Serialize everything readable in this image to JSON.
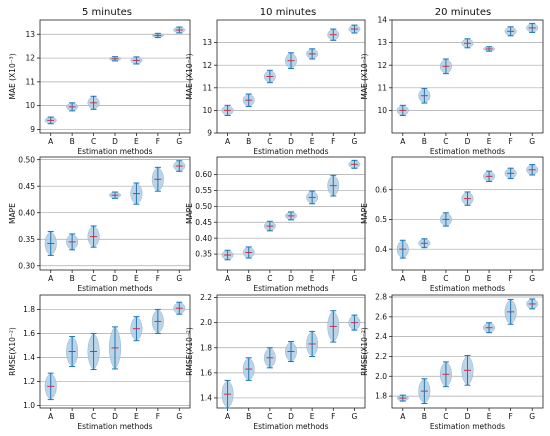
{
  "column_titles": [
    "5 minutes",
    "10 minutes",
    "20 minutes"
  ],
  "chart_data": [
    {
      "type": "violin",
      "row": 0,
      "col": 0,
      "ylabel": "MAE (X10⁻³)",
      "xlabel": "Estimation methods",
      "categories": [
        "A",
        "B",
        "C",
        "D",
        "E",
        "F",
        "G"
      ],
      "ylim": [
        8.85,
        13.6
      ],
      "yticks": [
        9,
        10,
        11,
        12,
        13
      ],
      "values": [
        9.38,
        9.95,
        10.12,
        11.97,
        11.9,
        12.95,
        13.18
      ],
      "spread": [
        0.28,
        0.34,
        0.55,
        0.18,
        0.3,
        0.18,
        0.25
      ],
      "fill": "#afcde3",
      "median_color": "#c8324b"
    },
    {
      "type": "violin",
      "row": 0,
      "col": 1,
      "ylabel": "MAE (X10⁻³)",
      "xlabel": "Estimation methods",
      "categories": [
        "A",
        "B",
        "C",
        "D",
        "E",
        "F",
        "G"
      ],
      "ylim": [
        9.0,
        14.0
      ],
      "yticks": [
        9,
        10,
        11,
        12,
        13
      ],
      "values": [
        10.0,
        10.45,
        11.5,
        12.2,
        12.5,
        13.35,
        13.6
      ],
      "spread": [
        0.45,
        0.55,
        0.55,
        0.7,
        0.45,
        0.5,
        0.35
      ],
      "fill": "#afcde3",
      "median_color": "#c8324b"
    },
    {
      "type": "violin",
      "row": 0,
      "col": 2,
      "ylabel": "MAE (X10⁻³)",
      "xlabel": "Estimation methods",
      "categories": [
        "A",
        "B",
        "C",
        "D",
        "E",
        "F",
        "G"
      ],
      "ylim": [
        9.0,
        14.0
      ],
      "yticks": [
        10,
        11,
        12,
        13,
        14
      ],
      "values": [
        10.0,
        10.65,
        11.95,
        12.97,
        12.72,
        13.5,
        13.65
      ],
      "spread": [
        0.45,
        0.65,
        0.65,
        0.4,
        0.2,
        0.4,
        0.4
      ],
      "fill": "#afcde3",
      "median_color": "#c8324b"
    },
    {
      "type": "violin",
      "row": 1,
      "col": 0,
      "ylabel": "MAPE",
      "xlabel": "Estimation methods",
      "categories": [
        "A",
        "B",
        "C",
        "D",
        "E",
        "F",
        "G"
      ],
      "ylim": [
        0.292,
        0.505
      ],
      "yticks": [
        0.3,
        0.35,
        0.4,
        0.45,
        0.5
      ],
      "values": [
        0.342,
        0.345,
        0.355,
        0.433,
        0.436,
        0.463,
        0.488
      ],
      "spread": [
        0.045,
        0.03,
        0.04,
        0.012,
        0.04,
        0.045,
        0.02
      ],
      "fill": "#afcde3",
      "median_color": "#c8324b"
    },
    {
      "type": "violin",
      "row": 1,
      "col": 1,
      "ylabel": "MAPE",
      "xlabel": "Estimation methods",
      "categories": [
        "A",
        "B",
        "C",
        "D",
        "E",
        "F",
        "G"
      ],
      "ylim": [
        0.3,
        0.655
      ],
      "yticks": [
        0.35,
        0.4,
        0.45,
        0.5,
        0.55,
        0.6
      ],
      "values": [
        0.347,
        0.355,
        0.438,
        0.47,
        0.528,
        0.565,
        0.632
      ],
      "spread": [
        0.03,
        0.035,
        0.03,
        0.025,
        0.04,
        0.065,
        0.025
      ],
      "fill": "#afcde3",
      "median_color": "#c8324b"
    },
    {
      "type": "violin",
      "row": 1,
      "col": 2,
      "ylabel": "MAPE",
      "xlabel": "Estimation methods",
      "categories": [
        "A",
        "B",
        "C",
        "D",
        "E",
        "F",
        "G"
      ],
      "ylim": [
        0.33,
        0.71
      ],
      "yticks": [
        0.4,
        0.5,
        0.6
      ],
      "values": [
        0.4,
        0.42,
        0.5,
        0.57,
        0.645,
        0.655,
        0.667
      ],
      "spread": [
        0.06,
        0.03,
        0.045,
        0.045,
        0.035,
        0.035,
        0.035
      ],
      "fill": "#afcde3",
      "median_color": "#c8324b"
    },
    {
      "type": "violin",
      "row": 2,
      "col": 0,
      "ylabel": "RMSE(X10⁻²)",
      "xlabel": "Estimation methods",
      "categories": [
        "A",
        "B",
        "C",
        "D",
        "E",
        "F",
        "G"
      ],
      "ylim": [
        0.98,
        1.92
      ],
      "yticks": [
        1.0,
        1.2,
        1.4,
        1.6,
        1.8
      ],
      "values": [
        1.16,
        1.45,
        1.45,
        1.48,
        1.64,
        1.7,
        1.81
      ],
      "spread": [
        0.22,
        0.25,
        0.3,
        0.35,
        0.2,
        0.2,
        0.1
      ],
      "fill": "#afcde3",
      "median_color": "#c8324b"
    },
    {
      "type": "violin",
      "row": 2,
      "col": 1,
      "ylabel": "RMSE(X10⁻²)",
      "xlabel": "Estimation methods",
      "categories": [
        "A",
        "B",
        "C",
        "D",
        "E",
        "F",
        "G"
      ],
      "ylim": [
        1.32,
        2.22
      ],
      "yticks": [
        1.4,
        1.6,
        1.8,
        2.0,
        2.2
      ],
      "values": [
        1.43,
        1.63,
        1.72,
        1.77,
        1.83,
        1.97,
        2.0
      ],
      "spread": [
        0.22,
        0.18,
        0.16,
        0.16,
        0.2,
        0.25,
        0.12
      ],
      "fill": "#afcde3",
      "median_color": "#c8324b"
    },
    {
      "type": "violin",
      "row": 2,
      "col": 2,
      "ylabel": "RMSE(X10⁻²)",
      "xlabel": "Estimation methods",
      "categories": [
        "A",
        "B",
        "C",
        "D",
        "E",
        "F",
        "G"
      ],
      "ylim": [
        1.68,
        2.82
      ],
      "yticks": [
        1.8,
        2.0,
        2.2,
        2.4,
        2.6,
        2.8
      ],
      "values": [
        1.78,
        1.85,
        2.02,
        2.06,
        2.49,
        2.65,
        2.73
      ],
      "spread": [
        0.06,
        0.25,
        0.25,
        0.3,
        0.1,
        0.25,
        0.1
      ],
      "fill": "#afcde3",
      "median_color": "#c8324b"
    }
  ]
}
